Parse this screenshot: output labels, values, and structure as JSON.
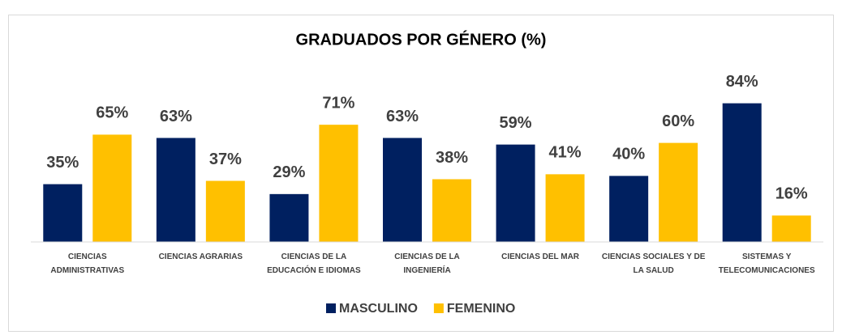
{
  "chart_data": {
    "type": "bar",
    "title": "GRADUADOS POR GÉNERO (%)",
    "categories": [
      "CIENCIAS ADMINISTRATIVAS",
      "CIENCIAS AGRARIAS",
      "CIENCIAS DE LA EDUCACIÓN E IDIOMAS",
      "CIENCIAS DE LA INGENIERÍA",
      "CIENCIAS DEL MAR",
      "CIENCIAS SOCIALES Y DE LA SALUD",
      "SISTEMAS Y TELECOMUNICACIONES"
    ],
    "series": [
      {
        "name": "MASCULINO",
        "color": "#002060",
        "values": [
          35,
          63,
          29,
          63,
          59,
          40,
          84
        ],
        "value_labels": [
          "35%",
          "63%",
          "29%",
          "63%",
          "59%",
          "40%",
          "84%"
        ]
      },
      {
        "name": "FEMENINO",
        "color": "#FFC000",
        "values": [
          65,
          37,
          71,
          38,
          41,
          60,
          16
        ],
        "value_labels": [
          "65%",
          "37%",
          "71%",
          "38%",
          "41%",
          "60%",
          "16%"
        ]
      }
    ],
    "ylim": [
      0,
      100
    ],
    "legend": "bottom"
  }
}
